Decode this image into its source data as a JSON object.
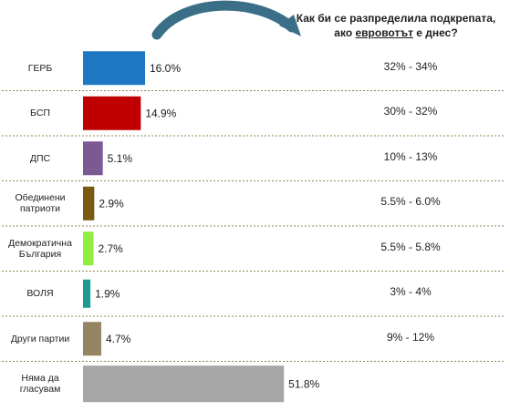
{
  "question": {
    "line1": "Как би се разпределила подкрепата,",
    "line2_pre": "ако ",
    "line2_u": "евровотът",
    "line2_post": " е днес?"
  },
  "chart_data": {
    "type": "bar",
    "orientation": "horizontal",
    "categories": [
      "ГЕРБ",
      "БСП",
      "ДПС",
      "Обединени патриоти",
      "Демократична България",
      "ВОЛЯ",
      "Други партии",
      "Няма да гласувам"
    ],
    "category_lines": [
      [
        "ГЕРБ"
      ],
      [
        "БСП"
      ],
      [
        "ДПС"
      ],
      [
        "Обединени",
        "патриоти"
      ],
      [
        "Демократична",
        "България"
      ],
      [
        "ВОЛЯ"
      ],
      [
        "Други партии"
      ],
      [
        "Няма да",
        "гласувам"
      ]
    ],
    "values": [
      16.0,
      14.9,
      5.1,
      2.9,
      2.7,
      1.9,
      4.7,
      51.8
    ],
    "data_labels": [
      "16.0%",
      "14.9%",
      "5.1%",
      "2.9%",
      "2.7%",
      "1.9%",
      "4.7%",
      "51.8%"
    ],
    "ranges": [
      "32% - 34%",
      "30% - 32%",
      "10% - 13%",
      "5.5% - 6.0%",
      "5.5% - 5.8%",
      "3% - 4%",
      "9% - 12%",
      ""
    ],
    "colors": [
      "#1f77c4",
      "#c00000",
      "#7b5a93",
      "#7a5a10",
      "#90ee40",
      "#1a9a96",
      "#958561",
      "#a6a6a6"
    ],
    "divider_color": "#8a8a50",
    "arrow_color": "#3a6f87"
  }
}
